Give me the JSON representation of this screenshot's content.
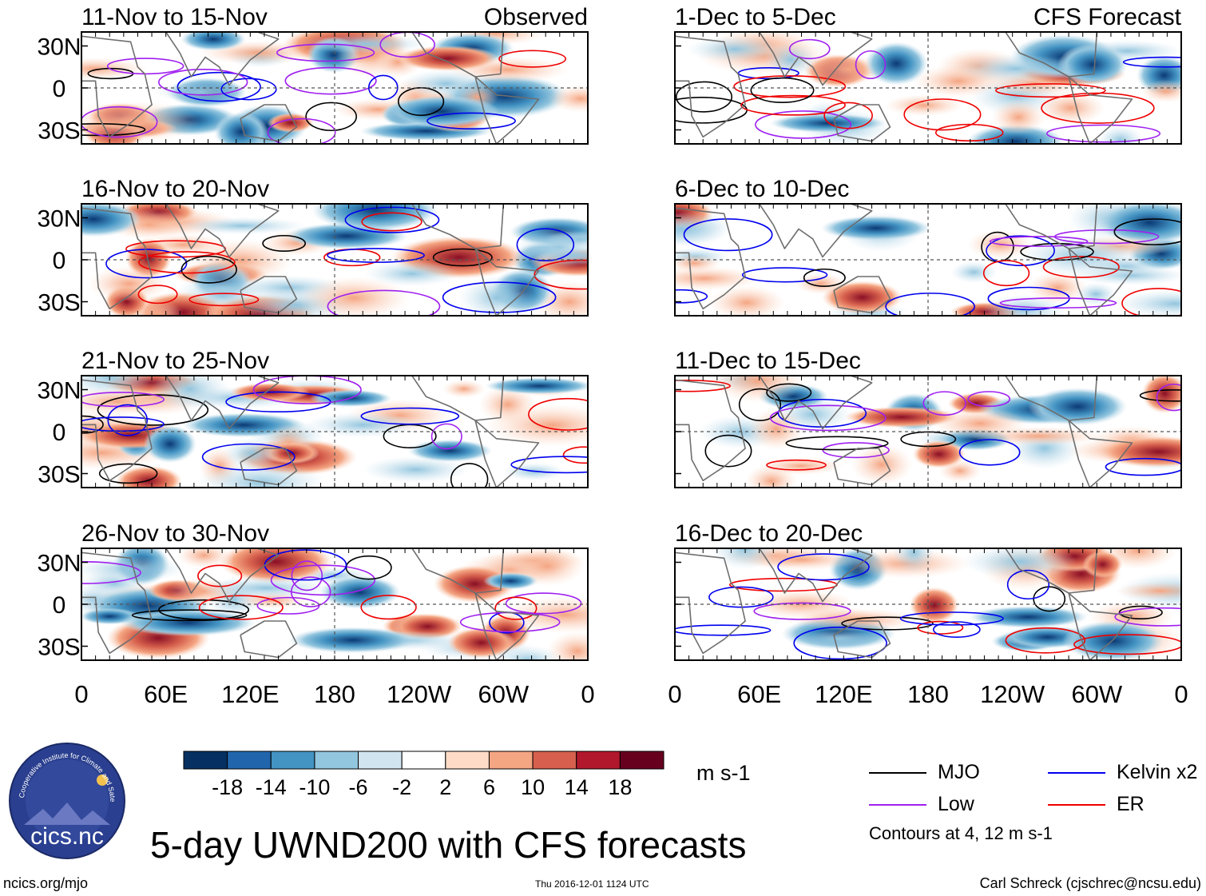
{
  "figure": {
    "main_title": "5-day UWND200 with CFS forecasts",
    "website": "ncics.org/mjo",
    "timestamp": "Thu 2016-12-01 1124 UTC",
    "author": "Carl Schreck (cjschrec@ncsu.edu)",
    "logo_text": "cics.nc",
    "logo_ring_text": "Cooperative Institute for Climate and Satellites"
  },
  "chart_data": {
    "type": "heatmap",
    "variable": "UWND200",
    "panels_observed_header": "Observed",
    "panels_forecast_header": "CFS Forecast",
    "panels": [
      {
        "column": "observed",
        "period": "11-Nov to 15-Nov",
        "header": "Observed"
      },
      {
        "column": "observed",
        "period": "16-Nov to 20-Nov",
        "header": ""
      },
      {
        "column": "observed",
        "period": "21-Nov to 25-Nov",
        "header": ""
      },
      {
        "column": "observed",
        "period": "26-Nov to 30-Nov",
        "header": ""
      },
      {
        "column": "forecast",
        "period": "1-Dec to 5-Dec",
        "header": "CFS Forecast"
      },
      {
        "column": "forecast",
        "period": "6-Dec to 10-Dec",
        "header": ""
      },
      {
        "column": "forecast",
        "period": "11-Dec to 15-Dec",
        "header": ""
      },
      {
        "column": "forecast",
        "period": "16-Dec to 20-Dec",
        "header": ""
      }
    ],
    "y_tick_labels": [
      "30N",
      "0",
      "30S"
    ],
    "y_ticks_deg": [
      30,
      0,
      -30
    ],
    "ylim_deg": [
      -40,
      40
    ],
    "x_tick_labels": [
      "0",
      "60E",
      "120E",
      "180",
      "120W",
      "60W",
      "0"
    ],
    "x_ticks_deg": [
      0,
      60,
      120,
      180,
      240,
      300,
      360
    ],
    "xlim_deg": [
      0,
      360
    ],
    "colorbar": {
      "units": "m s-1",
      "tick_labels": [
        "-18",
        "-14",
        "-10",
        "-6",
        "-2",
        "2",
        "6",
        "10",
        "14",
        "18"
      ],
      "colors": [
        "#053061",
        "#2166ac",
        "#4393c3",
        "#92c5de",
        "#d1e5f0",
        "#ffffff",
        "#fddbc7",
        "#f4a582",
        "#d6604d",
        "#b2182b",
        "#67001f"
      ]
    },
    "legend": [
      {
        "label": "MJO",
        "color": "#000000"
      },
      {
        "label": "Kelvin x2",
        "color": "#0000ee"
      },
      {
        "label": "Low",
        "color": "#a020f0"
      },
      {
        "label": "ER",
        "color": "#ee0000"
      }
    ],
    "contour_note": "Contours at 4, 12 m s-1"
  }
}
